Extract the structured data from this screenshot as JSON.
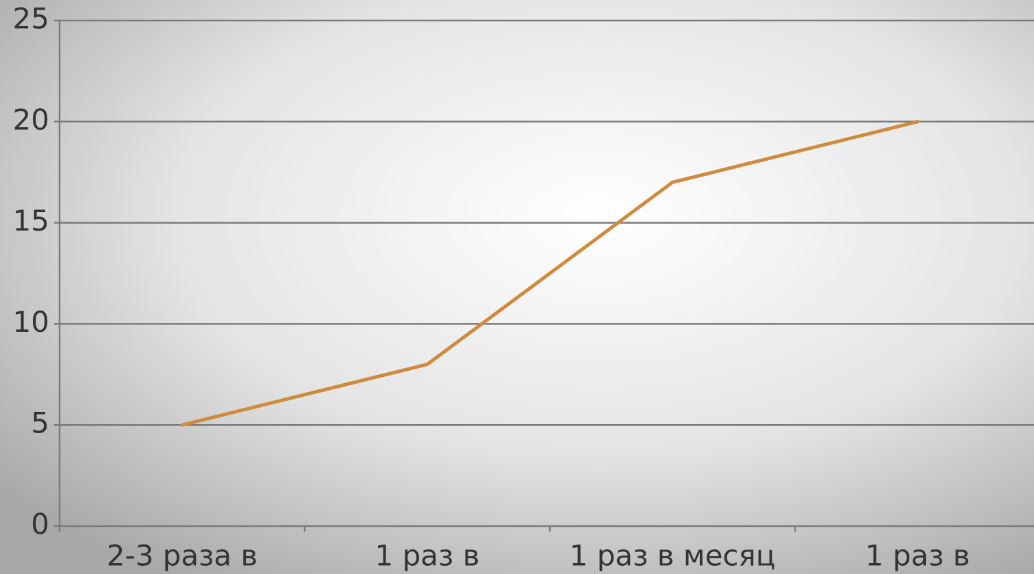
{
  "chart_data": {
    "type": "line",
    "categories": [
      "2-3 раза в",
      "1 раз в",
      "1 раз в месяц",
      "1 раз в"
    ],
    "series": [
      {
        "name": "",
        "color": "#d08a3e",
        "values": [
          5,
          8,
          17,
          20
        ]
      }
    ],
    "ylim": [
      0,
      25
    ],
    "yticks": [
      0,
      5,
      10,
      15,
      20,
      25
    ],
    "grid": true
  }
}
